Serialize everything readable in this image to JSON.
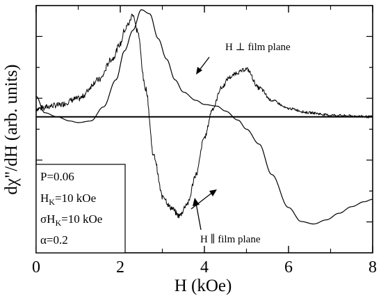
{
  "chart_data": {
    "type": "line",
    "xlabel": "H (kOe)",
    "ylabel": "dχ\"/dH (arb. units)",
    "xlim": [
      0,
      8
    ],
    "ylim": [
      -1.65,
      1.35
    ],
    "x_ticks": [
      0,
      2,
      4,
      6,
      8
    ],
    "y_ticks_labeled": false,
    "grid": false,
    "baseline_y": 0,
    "series": [
      {
        "style": "smooth",
        "x": [
          0,
          0.2,
          0.5,
          0.8,
          1.0,
          1.3,
          1.6,
          1.9,
          2.1,
          2.3,
          2.5,
          2.7,
          2.9,
          3.1,
          3.3,
          3.5,
          3.8,
          4.0,
          4.3,
          4.5,
          4.8,
          5.0,
          5.3,
          5.6,
          6.0,
          6.3,
          6.6,
          6.9,
          7.2,
          7.5,
          7.8,
          8.0
        ],
        "y": [
          0.25,
          0.05,
          0.0,
          -0.05,
          -0.07,
          -0.05,
          0.12,
          0.45,
          0.8,
          1.05,
          1.3,
          1.25,
          0.95,
          0.7,
          0.45,
          0.3,
          0.2,
          0.15,
          0.13,
          0.07,
          -0.04,
          -0.15,
          -0.33,
          -0.7,
          -1.1,
          -1.27,
          -1.3,
          -1.25,
          -1.17,
          -1.09,
          -1.03,
          -1.0
        ],
        "note_x_axis": "shown as printed H values"
      },
      {
        "style": "noisy",
        "x": [
          0,
          0.5,
          1.0,
          1.5,
          1.8,
          2.0,
          2.1,
          2.2,
          2.3,
          2.4,
          2.6,
          2.8,
          3.0,
          3.2,
          3.4,
          3.6,
          3.8,
          4.0,
          4.2,
          4.4,
          4.6,
          4.8,
          5.0,
          5.3,
          5.6,
          6.0,
          6.5,
          7.0,
          7.5,
          8.0
        ],
        "y": [
          0.1,
          0.14,
          0.22,
          0.45,
          0.7,
          0.88,
          1.05,
          1.13,
          1.25,
          1.05,
          0.35,
          -0.48,
          -0.95,
          -1.1,
          -1.2,
          -1.05,
          -0.7,
          -0.25,
          0.1,
          0.35,
          0.48,
          0.54,
          0.58,
          0.35,
          0.2,
          0.1,
          0.05,
          0.02,
          0.01,
          0.0
        ]
      }
    ],
    "annotations": [
      {
        "text": "H ⊥ film plane",
        "x": 4.45,
        "y": 0.78
      },
      {
        "text": "H ∥ film plane",
        "x": 4.4,
        "y": -1.55
      }
    ],
    "parameters": [
      "P=0.06",
      "H_K=10 kOe",
      "σH_K=10 kOe",
      "α=0.2"
    ]
  },
  "labels": {
    "x_axis": "H (kOe)",
    "y_axis": "dχ\"/dH (arb. units)",
    "perp": "H ⊥ film plane",
    "par": "H ∥ film plane",
    "p": "P=0.06",
    "hk_main": "H",
    "hk_sub": "K",
    "hk_rest": "=10 kOe",
    "shk_main": "σH",
    "shk_sub": "K",
    "shk_rest": "=10 kOe",
    "alpha": "α=0.2"
  }
}
